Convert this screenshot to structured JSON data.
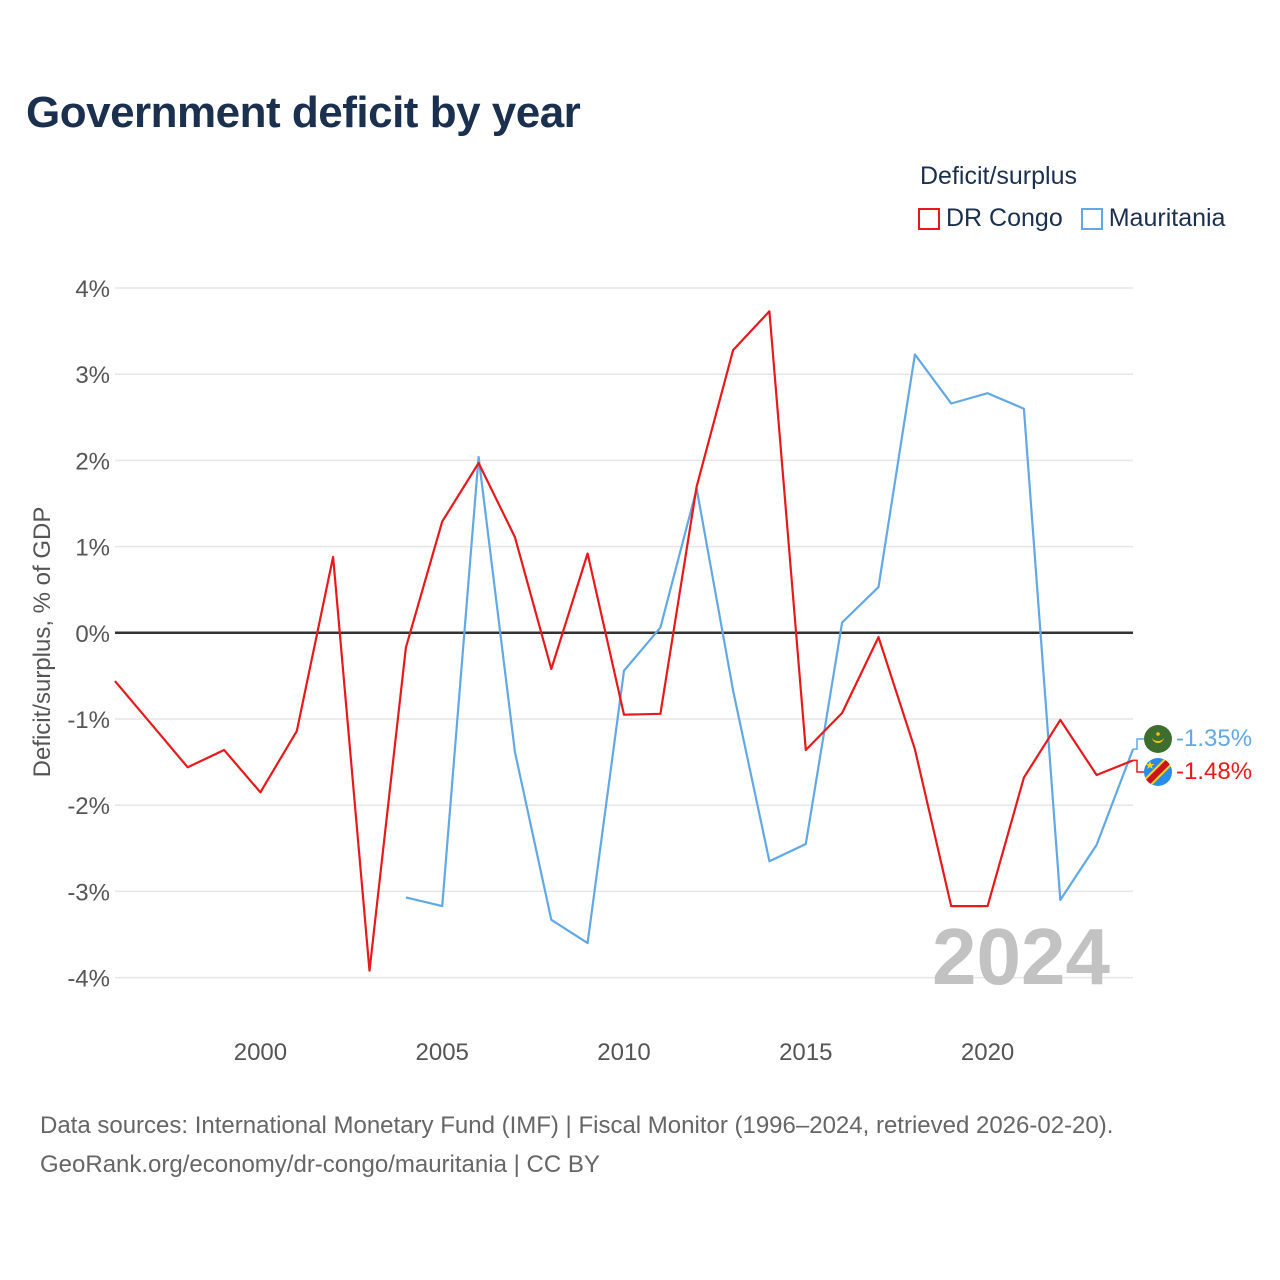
{
  "title": "Government deficit by year",
  "legend": {
    "title": "Deficit/surplus",
    "items": [
      {
        "label": "DR Congo",
        "color": "#e8191b"
      },
      {
        "label": "Mauritania",
        "color": "#62a8e5"
      }
    ]
  },
  "watermark_year": "2024",
  "source": {
    "line1": "Data sources: International Monetary Fund (IMF) | Fiscal Monitor (1996–2024, retrieved 2026-02-20).",
    "line2": "GeoRank.org/economy/dr-congo/mauritania | CC BY"
  },
  "chart_data": {
    "type": "line",
    "title": "Government deficit by year",
    "xlabel": "",
    "ylabel": "Deficit/surplus, % of GDP",
    "xlim": [
      1996,
      2024
    ],
    "ylim": [
      -4.4,
      4.2
    ],
    "yticks": [
      4,
      3,
      2,
      1,
      0,
      -1,
      -2,
      -3,
      -4
    ],
    "ytick_labels": [
      "4%",
      "3%",
      "2%",
      "1%",
      "0%",
      "-1%",
      "-2%",
      "-3%",
      "-4%"
    ],
    "xticks": [
      2000,
      2005,
      2010,
      2015,
      2020
    ],
    "xtick_labels": [
      "2000",
      "2005",
      "2010",
      "2015",
      "2020"
    ],
    "grid": true,
    "series": [
      {
        "name": "DR Congo",
        "color": "#e8191b",
        "x": [
          1996,
          1997,
          1998,
          1999,
          2000,
          2001,
          2002,
          2003,
          2004,
          2005,
          2006,
          2007,
          2008,
          2009,
          2010,
          2011,
          2012,
          2013,
          2014,
          2015,
          2016,
          2017,
          2018,
          2019,
          2020,
          2021,
          2022,
          2023,
          2024
        ],
        "values": [
          -0.56,
          -1.06,
          -1.56,
          -1.36,
          -1.85,
          -1.14,
          0.88,
          -3.92,
          -0.17,
          1.29,
          1.97,
          1.11,
          -0.42,
          0.92,
          -0.95,
          -0.94,
          1.7,
          3.28,
          3.73,
          -1.36,
          -0.93,
          -0.05,
          -1.35,
          -3.17,
          -3.17,
          -1.68,
          -1.01,
          -1.65,
          -1.48
        ],
        "end_label": "-1.48%"
      },
      {
        "name": "Mauritania",
        "color": "#62a8e5",
        "x": [
          2004,
          2005,
          2006,
          2007,
          2008,
          2009,
          2010,
          2011,
          2012,
          2013,
          2014,
          2015,
          2016,
          2017,
          2018,
          2019,
          2020,
          2021,
          2022,
          2023,
          2024
        ],
        "values": [
          -3.07,
          -3.17,
          2.04,
          -1.38,
          -3.33,
          -3.6,
          -0.44,
          0.06,
          1.67,
          -0.67,
          -2.65,
          -2.45,
          0.12,
          0.53,
          3.23,
          2.66,
          2.78,
          2.6,
          -3.1,
          -2.46,
          -1.35
        ],
        "end_label": "-1.35%"
      }
    ]
  }
}
